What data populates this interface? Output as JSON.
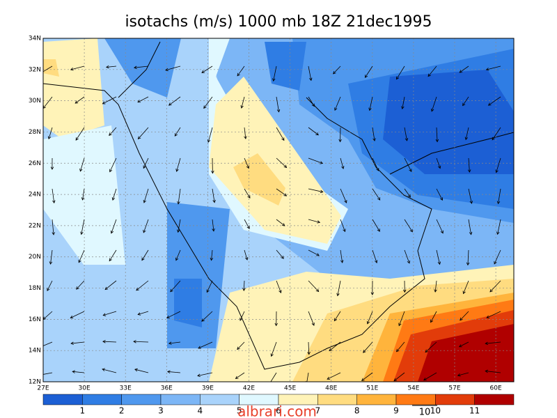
{
  "title": "isotachs (m/s) 1000 mb 18Z 21dec1995",
  "map": {
    "lon_labels": [
      "27E",
      "30E",
      "33E",
      "36E",
      "39E",
      "42E",
      "45E",
      "48E",
      "51E",
      "54E",
      "57E",
      "60E"
    ],
    "lat_labels": [
      "12N",
      "14N",
      "16N",
      "18N",
      "20N",
      "22N",
      "24N",
      "26N",
      "28N",
      "30N",
      "32N",
      "34N"
    ]
  },
  "colorbar": {
    "labels": [
      "1",
      "2",
      "3",
      "4",
      "5",
      "6",
      "7",
      "8",
      "9",
      "10",
      "11"
    ],
    "colors": [
      "#1c5fd4",
      "#2f7de4",
      "#4f98ee",
      "#7cb6f6",
      "#a9d3fb",
      "#e0f8ff",
      "#fff3b8",
      "#ffdc80",
      "#ffb43c",
      "#ff7a14",
      "#e23c0a",
      "#b00000"
    ]
  },
  "reference_vector": {
    "label": "10"
  },
  "watermark": "albrari.com"
}
